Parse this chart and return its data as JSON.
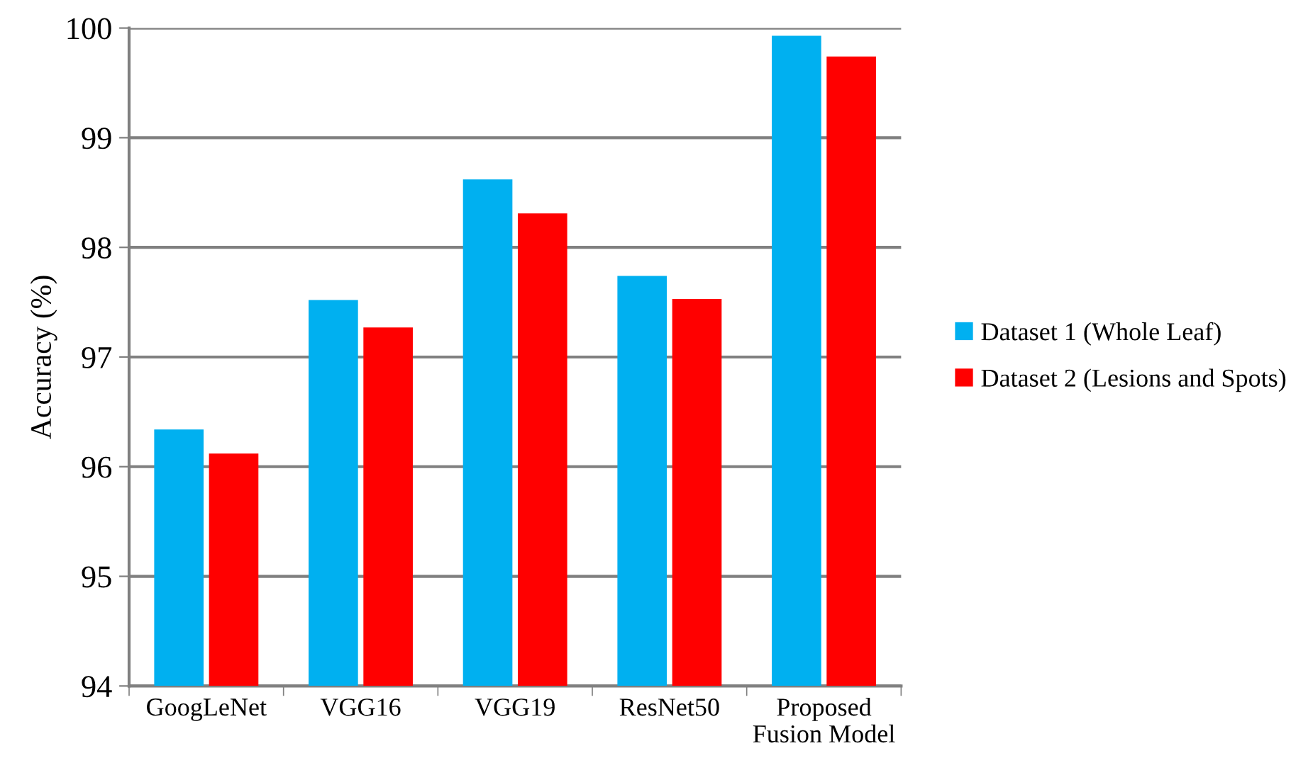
{
  "chart_data": {
    "type": "bar",
    "ylabel": "Accuracy (%)",
    "categories": [
      "GoogLeNet",
      "VGG16",
      "VGG19",
      "ResNet50",
      "Proposed\nFusion Model"
    ],
    "series": [
      {
        "name": "Dataset 1 (Whole Leaf)",
        "color": "#00b0f0",
        "values": [
          96.34,
          97.52,
          98.62,
          97.74,
          99.93
        ]
      },
      {
        "name": "Dataset 2 (Lesions and Spots)",
        "color": "#ff0000",
        "values": [
          96.12,
          97.27,
          98.31,
          97.53,
          99.74
        ]
      }
    ],
    "ylim": [
      94,
      100
    ],
    "yticks": [
      94,
      95,
      96,
      97,
      98,
      99,
      100
    ],
    "grid": "y",
    "legend": "right"
  }
}
